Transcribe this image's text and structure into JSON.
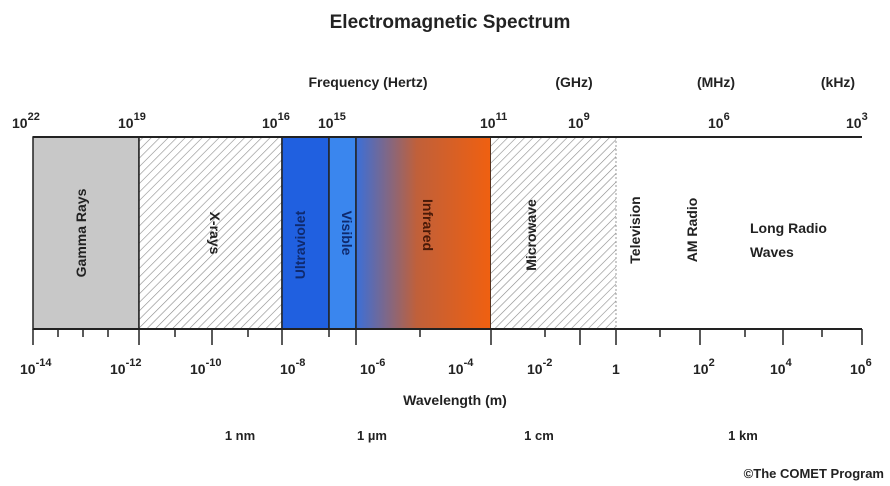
{
  "title": "Electromagnetic Spectrum",
  "frequency_header": "Frequency (Hertz)",
  "unit_ghz": "(GHz)",
  "unit_mhz": "(MHz)",
  "unit_khz": "(kHz)",
  "frequency_ticks": [
    {
      "base": "10",
      "exp": "22"
    },
    {
      "base": "10",
      "exp": "19"
    },
    {
      "base": "10",
      "exp": "16"
    },
    {
      "base": "10",
      "exp": "15"
    },
    {
      "base": "10",
      "exp": "11"
    },
    {
      "base": "10",
      "exp": "9"
    },
    {
      "base": "10",
      "exp": "6"
    },
    {
      "base": "10",
      "exp": "3"
    }
  ],
  "bands": [
    {
      "label": "Gamma Rays",
      "color": "#c8c8c8"
    },
    {
      "label": "X-rays",
      "color": "#ffffff"
    },
    {
      "label": "Ultraviolet",
      "color": "#2060e0"
    },
    {
      "label": "Visible",
      "color": "#3a86ee"
    },
    {
      "label": "Infrared",
      "color": "#e8600c"
    },
    {
      "label": "Microwave",
      "color": "#ffffff"
    },
    {
      "label": "Television",
      "color": "#ffffff"
    },
    {
      "label": "AM Radio",
      "color": "#ffffff"
    }
  ],
  "long_radio_line1": "Long Radio",
  "long_radio_line2": "Waves",
  "wavelength_ticks": [
    {
      "base": "10",
      "exp": "-14"
    },
    {
      "base": "10",
      "exp": "-12"
    },
    {
      "base": "10",
      "exp": "-10"
    },
    {
      "base": "10",
      "exp": "-8"
    },
    {
      "base": "10",
      "exp": "-6"
    },
    {
      "base": "10",
      "exp": "-4"
    },
    {
      "base": "10",
      "exp": "-2"
    },
    {
      "base": "1",
      "exp": ""
    },
    {
      "base": "10",
      "exp": "2"
    },
    {
      "base": "10",
      "exp": "4"
    },
    {
      "base": "10",
      "exp": "6"
    }
  ],
  "wavelength_label": "Wavelength (m)",
  "scale_labels": [
    "1 nm",
    "1 µm",
    "1 cm",
    "1 km"
  ],
  "credit": "©The COMET Program"
}
